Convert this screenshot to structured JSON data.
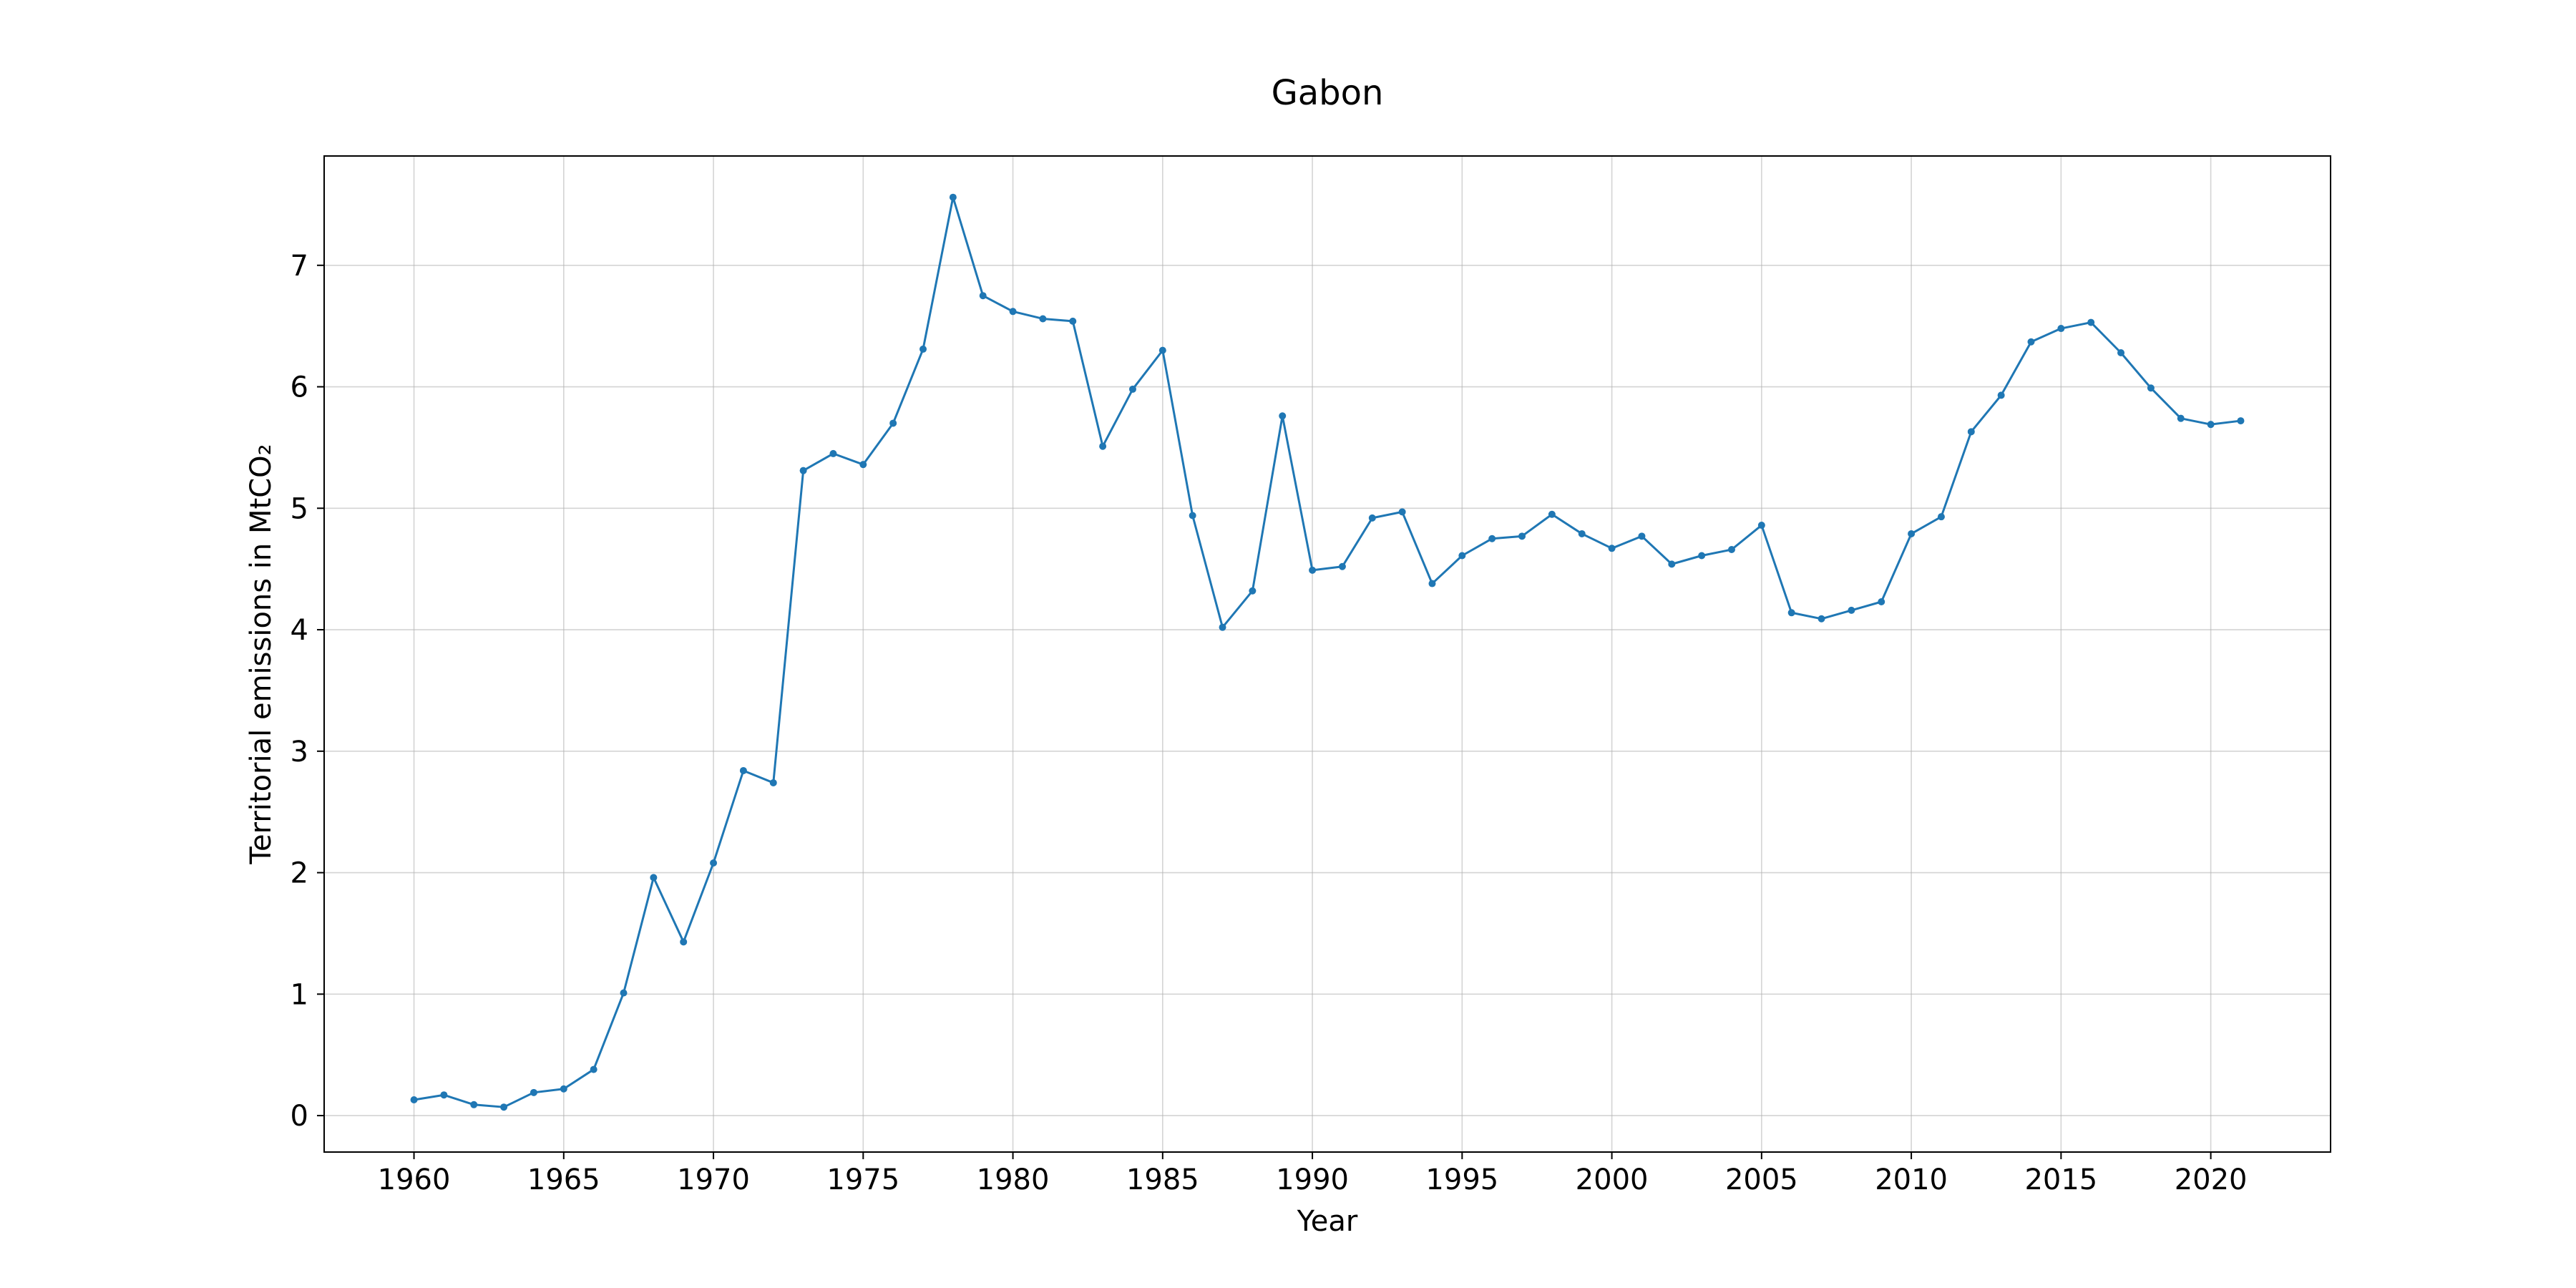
{
  "chart_data": {
    "type": "line",
    "title": "Gabon",
    "xlabel": "Year",
    "ylabel": "Territorial emissions in MtCO₂",
    "xlim": [
      1957,
      2024
    ],
    "ylim": [
      -0.3,
      7.9
    ],
    "xticks": [
      1960,
      1965,
      1970,
      1975,
      1980,
      1985,
      1990,
      1995,
      2000,
      2005,
      2010,
      2015,
      2020
    ],
    "yticks": [
      0,
      1,
      2,
      3,
      4,
      5,
      6,
      7
    ],
    "grid": true,
    "markers": true,
    "series": [
      {
        "color": "#1f77b4",
        "x": [
          1960,
          1961,
          1962,
          1963,
          1964,
          1965,
          1966,
          1967,
          1968,
          1969,
          1970,
          1971,
          1972,
          1973,
          1974,
          1975,
          1976,
          1977,
          1978,
          1979,
          1980,
          1981,
          1982,
          1983,
          1984,
          1985,
          1986,
          1987,
          1988,
          1989,
          1990,
          1991,
          1992,
          1993,
          1994,
          1995,
          1996,
          1997,
          1998,
          1999,
          2000,
          2001,
          2002,
          2003,
          2004,
          2005,
          2006,
          2007,
          2008,
          2009,
          2010,
          2011,
          2012,
          2013,
          2014,
          2015,
          2016,
          2017,
          2018,
          2019,
          2020,
          2021
        ],
        "y": [
          0.13,
          0.17,
          0.09,
          0.07,
          0.19,
          0.22,
          0.38,
          1.01,
          1.96,
          1.43,
          2.08,
          2.84,
          2.74,
          5.31,
          5.45,
          5.36,
          5.7,
          6.31,
          7.56,
          6.75,
          6.62,
          6.56,
          6.54,
          5.51,
          5.98,
          6.3,
          4.94,
          4.02,
          4.32,
          5.76,
          4.49,
          4.52,
          4.92,
          4.97,
          4.38,
          4.61,
          4.75,
          4.77,
          4.95,
          4.79,
          4.67,
          4.77,
          4.54,
          4.61,
          4.66,
          4.86,
          4.14,
          4.09,
          4.16,
          4.23,
          4.79,
          4.93,
          5.63,
          5.93,
          6.37,
          6.48,
          6.53,
          6.28,
          5.99,
          5.74,
          5.69,
          5.72
        ]
      }
    ]
  }
}
